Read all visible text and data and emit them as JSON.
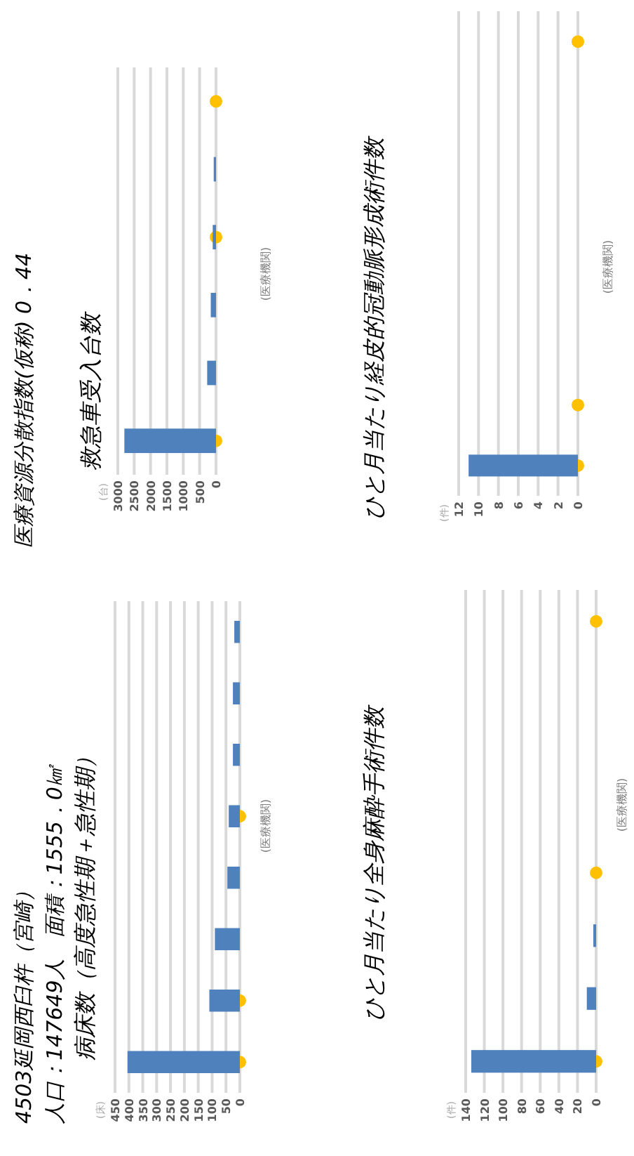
{
  "chart_data": [
    {
      "type": "bar",
      "orientation": "horizontal",
      "title": "病床数（高度急性期＋急性期）",
      "annotations": [
        "4503延岡西臼杵（宮崎）",
        "人口：147649人　面積：1555．0㎢",
        "(床)"
      ],
      "ylabel": "(医療機関)",
      "categories": [
        null,
        null,
        null,
        null,
        null,
        null,
        null,
        null
      ],
      "series": [
        {
          "type": "bar",
          "color": "#4f81bd",
          "values": [
            20,
            25,
            25,
            40,
            45,
            90,
            110,
            405
          ]
        },
        {
          "type": "scatter",
          "color": "#ffc000",
          "values": [
            null,
            null,
            null,
            0,
            null,
            null,
            0,
            0
          ]
        }
      ],
      "xlim": [
        450,
        0
      ],
      "xticks": [
        0,
        50,
        100,
        150,
        200,
        250,
        300,
        350,
        400,
        450
      ],
      "grid": "x",
      "marker": "circle"
    },
    {
      "type": "bar",
      "orientation": "horizontal",
      "title": "救急車受入台数",
      "annotations": [
        "医療資源分散指数(仮称) 0．44",
        "(台)"
      ],
      "ylabel": "(医療機関)",
      "categories": [
        null,
        null,
        null,
        null,
        null,
        null
      ],
      "series": [
        {
          "type": "bar",
          "color": "#4f81bd",
          "values": [
            0,
            70,
            100,
            160,
            270,
            2800
          ]
        },
        {
          "type": "scatter",
          "color": "#ffc000",
          "values": [
            0,
            null,
            0,
            null,
            null,
            0
          ]
        }
      ],
      "xlim": [
        3000,
        0
      ],
      "xticks": [
        0,
        500,
        1000,
        1500,
        2000,
        2500,
        3000
      ],
      "grid": "x",
      "marker": "circle"
    },
    {
      "type": "bar",
      "orientation": "horizontal",
      "title": "ひと月当たり全身麻酔手術件数",
      "annotations": [
        "(件)"
      ],
      "ylabel": "(医療機関)",
      "categories": [
        null,
        null,
        null,
        null,
        null,
        null,
        null,
        null
      ],
      "series": [
        {
          "type": "bar",
          "color": "#4f81bd",
          "values": [
            0,
            0,
            0,
            0,
            0,
            3,
            10,
            134
          ]
        },
        {
          "type": "scatter",
          "color": "#ffc000",
          "values": [
            0,
            null,
            null,
            null,
            0,
            null,
            null,
            0
          ]
        }
      ],
      "xlim": [
        140,
        0
      ],
      "xticks": [
        0,
        20,
        40,
        60,
        80,
        100,
        120,
        140
      ],
      "grid": "x",
      "marker": "circle"
    },
    {
      "type": "bar",
      "orientation": "horizontal",
      "title": "ひと月当たり経皮的冠動脈形成術件数",
      "annotations": [
        "(件)"
      ],
      "ylabel": "(医療機関)",
      "categories": [
        null,
        null,
        null,
        null,
        null,
        null,
        null,
        null
      ],
      "series": [
        {
          "type": "bar",
          "color": "#4f81bd",
          "values": [
            0,
            0,
            0,
            0,
            0,
            0,
            0,
            11
          ]
        },
        {
          "type": "scatter",
          "color": "#ffc000",
          "values": [
            0,
            null,
            null,
            null,
            null,
            null,
            0,
            0
          ]
        }
      ],
      "xlim": [
        12,
        0
      ],
      "xticks": [
        0,
        2,
        4,
        6,
        8,
        10,
        12
      ],
      "grid": "x",
      "marker": "circle"
    }
  ]
}
